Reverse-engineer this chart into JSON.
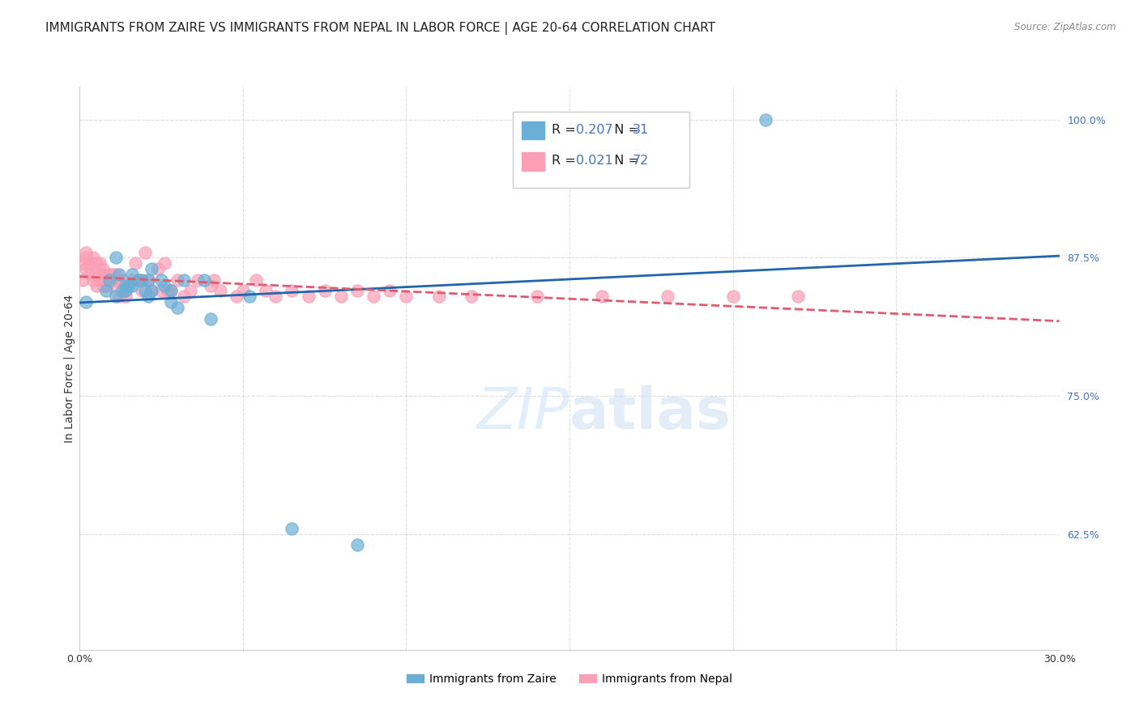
{
  "title": "IMMIGRANTS FROM ZAIRE VS IMMIGRANTS FROM NEPAL IN LABOR FORCE | AGE 20-64 CORRELATION CHART",
  "source": "Source: ZipAtlas.com",
  "xlabel": "",
  "ylabel": "In Labor Force | Age 20-64",
  "legend_label_zaire": "Immigrants from Zaire",
  "legend_label_nepal": "Immigrants from Nepal",
  "R_zaire": 0.207,
  "N_zaire": 31,
  "R_nepal": 0.021,
  "N_nepal": 72,
  "color_zaire": "#6baed6",
  "color_nepal": "#fa9fb5",
  "trend_color_zaire": "#2166ac",
  "trend_color_nepal": "#e05a70",
  "xlim": [
    0.0,
    0.3
  ],
  "ylim": [
    0.52,
    1.03
  ],
  "xticks": [
    0.0,
    0.05,
    0.1,
    0.15,
    0.2,
    0.25,
    0.3
  ],
  "yticks": [
    0.625,
    0.75,
    0.875,
    1.0
  ],
  "ytick_labels": [
    "62.5%",
    "75.0%",
    "87.5%",
    "100.0%"
  ],
  "xtick_labels": [
    "0.0%",
    "",
    "",
    "",
    "",
    "",
    "30.0%"
  ],
  "zaire_x": [
    0.002,
    0.008,
    0.009,
    0.011,
    0.011,
    0.012,
    0.013,
    0.014,
    0.014,
    0.015,
    0.016,
    0.016,
    0.018,
    0.019,
    0.02,
    0.021,
    0.021,
    0.022,
    0.022,
    0.025,
    0.026,
    0.028,
    0.028,
    0.03,
    0.032,
    0.038,
    0.04,
    0.052,
    0.065,
    0.085,
    0.21
  ],
  "zaire_y": [
    0.835,
    0.845,
    0.855,
    0.84,
    0.875,
    0.86,
    0.845,
    0.85,
    0.845,
    0.85,
    0.85,
    0.86,
    0.855,
    0.855,
    0.845,
    0.84,
    0.855,
    0.845,
    0.865,
    0.855,
    0.85,
    0.835,
    0.845,
    0.83,
    0.855,
    0.855,
    0.82,
    0.84,
    0.63,
    0.615,
    1.0
  ],
  "nepal_x": [
    0.001,
    0.001,
    0.002,
    0.002,
    0.002,
    0.003,
    0.003,
    0.004,
    0.004,
    0.005,
    0.005,
    0.005,
    0.006,
    0.006,
    0.006,
    0.007,
    0.007,
    0.007,
    0.008,
    0.008,
    0.008,
    0.009,
    0.009,
    0.01,
    0.01,
    0.01,
    0.011,
    0.011,
    0.012,
    0.012,
    0.013,
    0.014,
    0.014,
    0.016,
    0.017,
    0.018,
    0.019,
    0.02,
    0.021,
    0.022,
    0.024,
    0.025,
    0.026,
    0.027,
    0.028,
    0.03,
    0.032,
    0.034,
    0.036,
    0.04,
    0.041,
    0.043,
    0.048,
    0.05,
    0.054,
    0.057,
    0.06,
    0.065,
    0.07,
    0.075,
    0.08,
    0.085,
    0.09,
    0.095,
    0.1,
    0.11,
    0.12,
    0.14,
    0.16,
    0.18,
    0.2,
    0.22
  ],
  "nepal_y": [
    0.855,
    0.87,
    0.865,
    0.875,
    0.88,
    0.86,
    0.87,
    0.855,
    0.875,
    0.85,
    0.86,
    0.87,
    0.855,
    0.86,
    0.87,
    0.85,
    0.855,
    0.865,
    0.85,
    0.855,
    0.86,
    0.855,
    0.86,
    0.85,
    0.855,
    0.86,
    0.855,
    0.86,
    0.84,
    0.855,
    0.855,
    0.845,
    0.84,
    0.855,
    0.87,
    0.855,
    0.845,
    0.88,
    0.855,
    0.845,
    0.865,
    0.845,
    0.87,
    0.845,
    0.845,
    0.855,
    0.84,
    0.845,
    0.855,
    0.85,
    0.855,
    0.845,
    0.84,
    0.845,
    0.855,
    0.845,
    0.84,
    0.845,
    0.84,
    0.845,
    0.84,
    0.845,
    0.84,
    0.845,
    0.84,
    0.84,
    0.84,
    0.84,
    0.84,
    0.84,
    0.84,
    0.84
  ],
  "background_color": "#ffffff",
  "grid_color": "#dddddd",
  "title_fontsize": 11,
  "axis_label_fontsize": 10,
  "tick_fontsize": 9,
  "tick_color_right": "#4472c4",
  "legend_R_color": "#4472c4",
  "legend_N_color": "#4472c4"
}
